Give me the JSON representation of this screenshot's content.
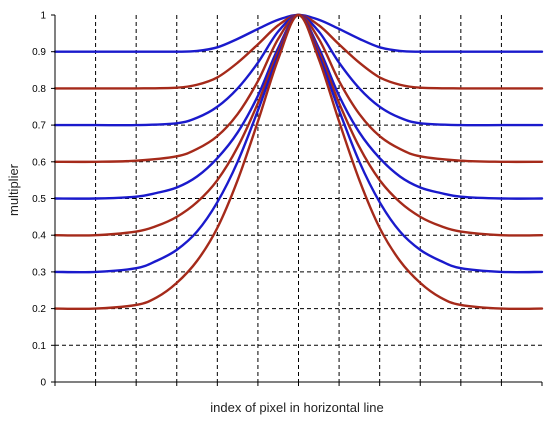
{
  "chart_data": {
    "type": "line",
    "title": "",
    "xlabel": "index of pixel in horizontal line",
    "ylabel": "multiplier",
    "xlim": [
      0,
      12
    ],
    "ylim": [
      0,
      1
    ],
    "x_ticks": [
      0,
      1,
      2,
      3,
      4,
      5,
      6,
      7,
      8,
      9,
      10,
      11,
      12
    ],
    "y_ticks": [
      0,
      0.1,
      0.2,
      0.3,
      0.4,
      0.5,
      0.6,
      0.7,
      0.8,
      0.9,
      1
    ],
    "y_tick_labels": [
      "0",
      "0.1",
      "0.2",
      "0.3",
      "0.4",
      "0.5",
      "0.6",
      "0.7",
      "0.8",
      "0.9",
      "1"
    ],
    "grid": true,
    "peak_x": 6,
    "series": [
      {
        "baseline": 0.9,
        "color": "#1a1acc",
        "values": [
          [
            0,
            0.9
          ],
          [
            1,
            0.9
          ],
          [
            2,
            0.9
          ],
          [
            3,
            0.9
          ],
          [
            3.5,
            0.902
          ],
          [
            4,
            0.912
          ],
          [
            4.5,
            0.935
          ],
          [
            5,
            0.962
          ],
          [
            5.5,
            0.987
          ],
          [
            6,
            1.0
          ],
          [
            6.5,
            0.987
          ],
          [
            7,
            0.962
          ],
          [
            7.5,
            0.935
          ],
          [
            8,
            0.912
          ],
          [
            8.5,
            0.902
          ],
          [
            9,
            0.9
          ],
          [
            10,
            0.9
          ],
          [
            11,
            0.9
          ],
          [
            12,
            0.9
          ]
        ]
      },
      {
        "baseline": 0.8,
        "color": "#a52a1a",
        "values": [
          [
            0,
            0.8
          ],
          [
            1,
            0.8
          ],
          [
            2,
            0.8
          ],
          [
            3,
            0.802
          ],
          [
            3.5,
            0.81
          ],
          [
            4,
            0.83
          ],
          [
            4.5,
            0.87
          ],
          [
            5,
            0.92
          ],
          [
            5.5,
            0.972
          ],
          [
            6,
            1.0
          ],
          [
            6.5,
            0.972
          ],
          [
            7,
            0.92
          ],
          [
            7.5,
            0.87
          ],
          [
            8,
            0.83
          ],
          [
            8.5,
            0.81
          ],
          [
            9,
            0.802
          ],
          [
            10,
            0.8
          ],
          [
            11,
            0.8
          ],
          [
            12,
            0.8
          ]
        ]
      },
      {
        "baseline": 0.7,
        "color": "#1a1acc",
        "values": [
          [
            0,
            0.7
          ],
          [
            1,
            0.7
          ],
          [
            2,
            0.7
          ],
          [
            3,
            0.705
          ],
          [
            3.5,
            0.72
          ],
          [
            4,
            0.75
          ],
          [
            4.5,
            0.8
          ],
          [
            5,
            0.87
          ],
          [
            5.5,
            0.955
          ],
          [
            6,
            1.0
          ],
          [
            6.5,
            0.955
          ],
          [
            7,
            0.87
          ],
          [
            7.5,
            0.8
          ],
          [
            8,
            0.75
          ],
          [
            8.5,
            0.72
          ],
          [
            9,
            0.705
          ],
          [
            10,
            0.7
          ],
          [
            11,
            0.7
          ],
          [
            12,
            0.7
          ]
        ]
      },
      {
        "baseline": 0.6,
        "color": "#a52a1a",
        "values": [
          [
            0,
            0.6
          ],
          [
            1,
            0.6
          ],
          [
            2,
            0.603
          ],
          [
            3,
            0.615
          ],
          [
            3.5,
            0.635
          ],
          [
            4,
            0.67
          ],
          [
            4.5,
            0.73
          ],
          [
            5,
            0.82
          ],
          [
            5.5,
            0.935
          ],
          [
            6,
            1.0
          ],
          [
            6.5,
            0.935
          ],
          [
            7,
            0.82
          ],
          [
            7.5,
            0.73
          ],
          [
            8,
            0.67
          ],
          [
            8.5,
            0.635
          ],
          [
            9,
            0.615
          ],
          [
            10,
            0.603
          ],
          [
            11,
            0.6
          ],
          [
            12,
            0.6
          ]
        ]
      },
      {
        "baseline": 0.5,
        "color": "#1a1acc",
        "values": [
          [
            0,
            0.5
          ],
          [
            1,
            0.5
          ],
          [
            2,
            0.505
          ],
          [
            2.5,
            0.515
          ],
          [
            3,
            0.53
          ],
          [
            3.5,
            0.56
          ],
          [
            4,
            0.61
          ],
          [
            4.5,
            0.68
          ],
          [
            5,
            0.78
          ],
          [
            5.5,
            0.91
          ],
          [
            6,
            1.0
          ],
          [
            6.5,
            0.91
          ],
          [
            7,
            0.78
          ],
          [
            7.5,
            0.68
          ],
          [
            8,
            0.61
          ],
          [
            8.5,
            0.56
          ],
          [
            9,
            0.53
          ],
          [
            9.5,
            0.515
          ],
          [
            10,
            0.505
          ],
          [
            11,
            0.5
          ],
          [
            12,
            0.5
          ]
        ]
      },
      {
        "baseline": 0.4,
        "color": "#a52a1a",
        "values": [
          [
            0,
            0.4
          ],
          [
            1,
            0.4
          ],
          [
            2,
            0.41
          ],
          [
            2.5,
            0.425
          ],
          [
            3,
            0.45
          ],
          [
            3.5,
            0.49
          ],
          [
            4,
            0.55
          ],
          [
            4.5,
            0.64
          ],
          [
            5,
            0.76
          ],
          [
            5.5,
            0.9
          ],
          [
            6,
            1.0
          ],
          [
            6.5,
            0.9
          ],
          [
            7,
            0.76
          ],
          [
            7.5,
            0.64
          ],
          [
            8,
            0.55
          ],
          [
            8.5,
            0.49
          ],
          [
            9,
            0.45
          ],
          [
            9.5,
            0.425
          ],
          [
            10,
            0.41
          ],
          [
            11,
            0.4
          ],
          [
            12,
            0.4
          ]
        ]
      },
      {
        "baseline": 0.3,
        "color": "#1a1acc",
        "values": [
          [
            0,
            0.3
          ],
          [
            1,
            0.3
          ],
          [
            2,
            0.31
          ],
          [
            2.5,
            0.33
          ],
          [
            3,
            0.36
          ],
          [
            3.5,
            0.41
          ],
          [
            4,
            0.49
          ],
          [
            4.5,
            0.6
          ],
          [
            5,
            0.74
          ],
          [
            5.5,
            0.89
          ],
          [
            6,
            1.0
          ],
          [
            6.5,
            0.89
          ],
          [
            7,
            0.74
          ],
          [
            7.5,
            0.6
          ],
          [
            8,
            0.49
          ],
          [
            8.5,
            0.41
          ],
          [
            9,
            0.36
          ],
          [
            9.5,
            0.33
          ],
          [
            10,
            0.31
          ],
          [
            11,
            0.3
          ],
          [
            12,
            0.3
          ]
        ]
      },
      {
        "baseline": 0.2,
        "color": "#a52a1a",
        "values": [
          [
            0,
            0.2
          ],
          [
            1,
            0.2
          ],
          [
            2,
            0.21
          ],
          [
            2.5,
            0.23
          ],
          [
            3,
            0.27
          ],
          [
            3.5,
            0.33
          ],
          [
            4,
            0.42
          ],
          [
            4.5,
            0.55
          ],
          [
            5,
            0.71
          ],
          [
            5.5,
            0.88
          ],
          [
            6,
            1.0
          ],
          [
            6.5,
            0.88
          ],
          [
            7,
            0.71
          ],
          [
            7.5,
            0.55
          ],
          [
            8,
            0.42
          ],
          [
            8.5,
            0.33
          ],
          [
            9,
            0.27
          ],
          [
            9.5,
            0.23
          ],
          [
            10,
            0.21
          ],
          [
            11,
            0.2
          ],
          [
            12,
            0.2
          ]
        ]
      }
    ]
  }
}
